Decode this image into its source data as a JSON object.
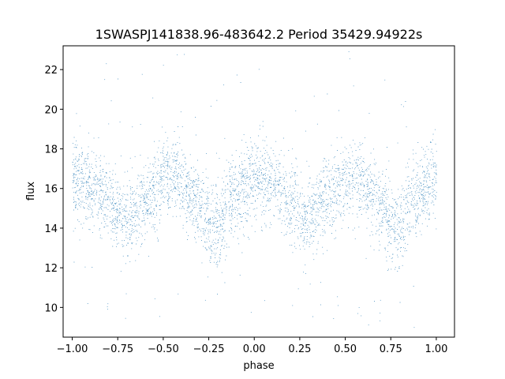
{
  "chart_data": {
    "type": "scatter",
    "title": "1SWASPJ141838.96-483642.2 Period 35429.94922s",
    "xlabel": "phase",
    "ylabel": "flux",
    "xlim": [
      -1.05,
      1.1
    ],
    "ylim": [
      8.5,
      23.2
    ],
    "xticks": [
      -1.0,
      -0.75,
      -0.5,
      -0.25,
      0.0,
      0.25,
      0.5,
      0.75,
      1.0
    ],
    "xtick_labels": [
      "−1.00",
      "−0.75",
      "−0.50",
      "−0.25",
      "0.00",
      "0.25",
      "0.50",
      "0.75",
      "1.00"
    ],
    "yticks": [
      10,
      12,
      14,
      16,
      18,
      20,
      22
    ],
    "ytick_labels": [
      "10",
      "12",
      "14",
      "16",
      "18",
      "20",
      "22"
    ],
    "grid": false,
    "series": [
      {
        "color": "#1f77b4",
        "marker_size": 0.6,
        "trend": {
          "phase": [
            -1.0,
            -0.9,
            -0.8,
            -0.72,
            -0.6,
            -0.5,
            -0.45,
            -0.35,
            -0.22,
            -0.1,
            0.0,
            0.1,
            0.2,
            0.28,
            0.4,
            0.5,
            0.55,
            0.65,
            0.78,
            0.9,
            1.0
          ],
          "flux": [
            16.6,
            16.1,
            15.3,
            14.4,
            15.4,
            16.4,
            16.6,
            15.6,
            14.0,
            15.6,
            16.6,
            16.1,
            15.2,
            14.5,
            15.5,
            16.4,
            16.6,
            15.6,
            14.0,
            15.6,
            16.6
          ]
        },
        "scatter_sigma": 1.0
      }
    ]
  }
}
